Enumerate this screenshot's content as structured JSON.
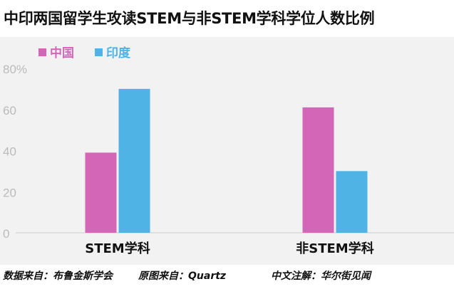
{
  "title": "中印两国留学生攻读STEM与非STEM学科学位人数比例",
  "footer": {
    "data_source": "数据来自：布鲁金斯学会",
    "image_source": "原图来自：Quartz",
    "note": "中文注解：华尔街见闻"
  },
  "chart_data": {
    "type": "bar",
    "categories": [
      "STEM学科",
      "非STEM学科"
    ],
    "series": [
      {
        "name": "中国",
        "color": "#d366b6",
        "values": [
          39,
          61
        ]
      },
      {
        "name": "印度",
        "color": "#4fb3e6",
        "values": [
          70,
          30
        ]
      }
    ],
    "y_ticks": [
      "0",
      "20",
      "40",
      "60",
      "80%"
    ],
    "ylim": [
      0,
      80
    ],
    "grid": false,
    "legend": "top-left",
    "axis_color": "#cccccc",
    "tick_color": "#bbbbbb",
    "category_label_color": "#111111"
  }
}
